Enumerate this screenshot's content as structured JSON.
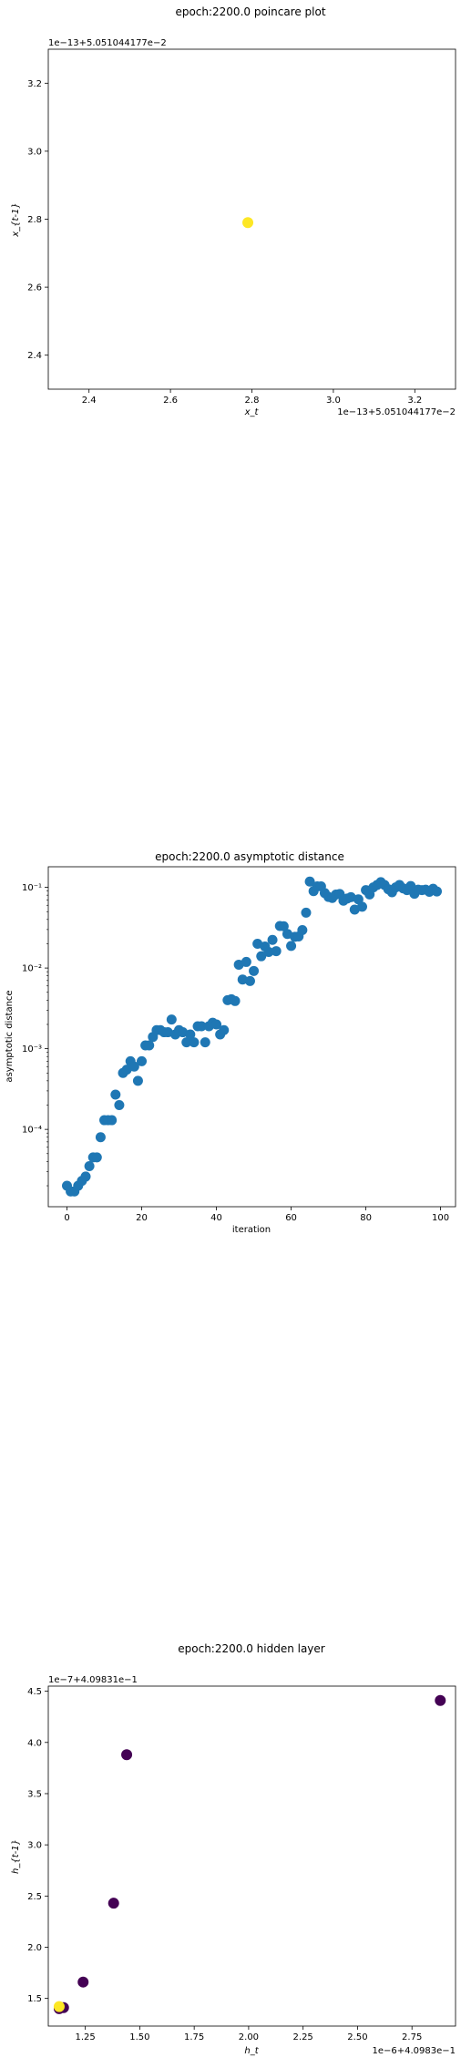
{
  "chart_data": [
    {
      "type": "scatter",
      "title": "epoch:2200.0 poincare plot",
      "xlabel": "x_t",
      "ylabel": "x_{t-1}",
      "offset_text_x": "1e−13+5.051044177e−2",
      "offset_text_y": "1e−13+5.051044177e−2",
      "xlim": [
        2.3,
        3.3
      ],
      "ylim": [
        2.3,
        3.3
      ],
      "xticks": [
        2.4,
        2.6,
        2.8,
        3.0,
        3.2
      ],
      "yticks": [
        2.4,
        2.6,
        2.8,
        3.0,
        3.2
      ],
      "xtick_labels": [
        "2.4",
        "2.6",
        "2.8",
        "3.0",
        "3.2"
      ],
      "ytick_labels": [
        "2.4",
        "2.6",
        "2.8",
        "3.0",
        "3.2"
      ],
      "points": [
        {
          "x": 2.79,
          "y": 2.79,
          "color": "#fde725"
        }
      ]
    },
    {
      "type": "scatter",
      "title": "epoch:2200.0 asymptotic distance",
      "xlabel": "iteration",
      "ylabel": "asymptotic distance",
      "yscale": "log",
      "xlim": [
        -5,
        104
      ],
      "ylim": [
        1.1e-05,
        0.18
      ],
      "xticks": [
        0,
        20,
        40,
        60,
        80,
        100
      ],
      "xtick_labels": [
        "0",
        "20",
        "40",
        "60",
        "80",
        "100"
      ],
      "yticks": [
        0.0001,
        0.001,
        0.01,
        0.1
      ],
      "ytick_labels": [
        "10⁻⁴",
        "10⁻³",
        "10⁻²",
        "10⁻¹"
      ],
      "color": "#1f77b4",
      "x": [
        0,
        1,
        2,
        3,
        4,
        5,
        6,
        7,
        8,
        9,
        10,
        11,
        12,
        13,
        14,
        15,
        16,
        17,
        18,
        19,
        20,
        21,
        22,
        23,
        24,
        25,
        26,
        27,
        28,
        29,
        30,
        31,
        32,
        33,
        34,
        35,
        36,
        37,
        38,
        39,
        40,
        41,
        42,
        43,
        44,
        45,
        46,
        47,
        48,
        49,
        50,
        51,
        52,
        53,
        54,
        55,
        56,
        57,
        58,
        59,
        60,
        61,
        62,
        63,
        64,
        65,
        66,
        67,
        68,
        69,
        70,
        71,
        72,
        73,
        74,
        75,
        76,
        77,
        78,
        79,
        80,
        81,
        82,
        83,
        84,
        85,
        86,
        87,
        88,
        89,
        90,
        91,
        92,
        93,
        94,
        95,
        96,
        97,
        98,
        99
      ],
      "y": [
        2e-05,
        1.7e-05,
        1.7e-05,
        2e-05,
        2.3e-05,
        2.6e-05,
        3.5e-05,
        4.5e-05,
        4.5e-05,
        8e-05,
        0.00013,
        0.00013,
        0.00013,
        0.00027,
        0.0002,
        0.0005,
        0.00055,
        0.0007,
        0.0006,
        0.0004,
        0.0007,
        0.0011,
        0.0011,
        0.0014,
        0.0017,
        0.0017,
        0.0016,
        0.0016,
        0.0023,
        0.0015,
        0.0017,
        0.0016,
        0.0012,
        0.0015,
        0.0012,
        0.0019,
        0.0019,
        0.0012,
        0.0019,
        0.0021,
        0.002,
        0.0015,
        0.0017,
        0.004,
        0.0041,
        0.0039,
        0.011,
        0.0072,
        0.0119,
        0.0069,
        0.0092,
        0.02,
        0.014,
        0.0185,
        0.0158,
        0.0223,
        0.0162,
        0.0332,
        0.033,
        0.0264,
        0.0188,
        0.0244,
        0.0246,
        0.0295,
        0.0485,
        0.118,
        0.0897,
        0.103,
        0.103,
        0.085,
        0.076,
        0.0738,
        0.0815,
        0.0828,
        0.0683,
        0.0727,
        0.0755,
        0.053,
        0.071,
        0.0575,
        0.0925,
        0.0817,
        0.1,
        0.107,
        0.116,
        0.107,
        0.095,
        0.087,
        0.1,
        0.107,
        0.097,
        0.0925,
        0.104,
        0.0833,
        0.0935,
        0.0925,
        0.0937,
        0.088,
        0.096,
        0.089
      ]
    },
    {
      "type": "scatter",
      "title": "epoch:2200.0 hidden layer",
      "xlabel": "h_t",
      "ylabel": "h_{t-1}",
      "offset_text_x": "1e−6+4.0983e−1",
      "offset_text_y": "1e−7+4.09831e−1",
      "xlim": [
        1.08,
        2.95
      ],
      "ylim": [
        1.23,
        4.55
      ],
      "xticks": [
        1.25,
        1.5,
        1.75,
        2.0,
        2.25,
        2.5,
        2.75
      ],
      "xtick_labels": [
        "1.25",
        "1.50",
        "1.75",
        "2.00",
        "2.25",
        "2.50",
        "2.75"
      ],
      "yticks": [
        1.5,
        2.0,
        2.5,
        3.0,
        3.5,
        4.0,
        4.5
      ],
      "ytick_labels": [
        "1.5",
        "2.0",
        "2.5",
        "3.0",
        "3.5",
        "4.0",
        "4.5"
      ],
      "points": [
        {
          "x": 2.88,
          "y": 4.41,
          "color": "#440154"
        },
        {
          "x": 1.44,
          "y": 3.88,
          "color": "#440154"
        },
        {
          "x": 1.38,
          "y": 2.43,
          "color": "#440154"
        },
        {
          "x": 1.24,
          "y": 1.66,
          "color": "#440154"
        },
        {
          "x": 1.15,
          "y": 1.41,
          "color": "#440154"
        },
        {
          "x": 1.13,
          "y": 1.4,
          "color": "#440154"
        },
        {
          "x": 1.13,
          "y": 1.42,
          "color": "#fde725"
        }
      ]
    }
  ]
}
